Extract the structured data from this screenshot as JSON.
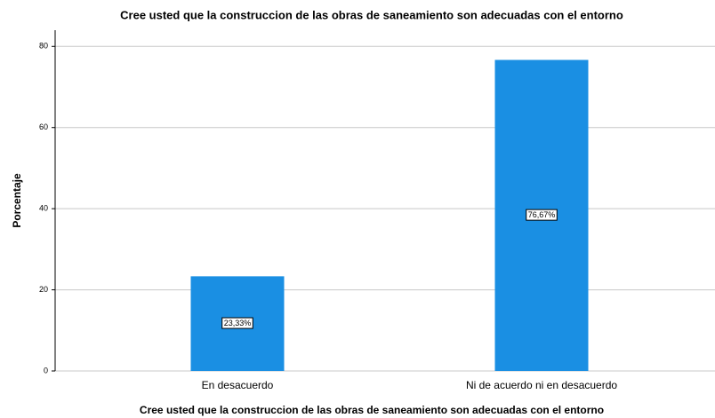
{
  "chart_data": {
    "type": "bar",
    "title": "Cree usted que la construccion de las obras de saneamiento son adecuadas con el entorno",
    "x_label": "Cree usted que la construccion de las obras de saneamiento son adecuadas con el entorno",
    "y_label": "Porcentaje",
    "categories": [
      "En desacuerdo",
      "Ni de acuerdo ni en desacuerdo"
    ],
    "values": [
      23.33,
      76.67
    ],
    "value_labels": [
      "23,33%",
      "76,67%"
    ],
    "color": "#1a8fe3",
    "ylim": [
      0,
      84
    ],
    "yticks": [
      0,
      20,
      40,
      60,
      80
    ],
    "grid": true
  }
}
